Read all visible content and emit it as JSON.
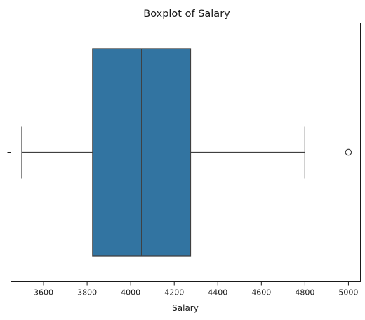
{
  "chart_data": {
    "type": "boxplot",
    "title": "Boxplot of Salary",
    "xlabel": "Salary",
    "ylabel": "",
    "xlim": [
      3450,
      5055
    ],
    "xticks": [
      3600,
      3800,
      4000,
      4200,
      4400,
      4600,
      4800,
      5000
    ],
    "grid": false,
    "series": [
      {
        "color": "#3274a1",
        "whisker_low": 3500,
        "q1": 3825,
        "median": 4050,
        "q3": 4275,
        "whisker_high": 4800,
        "outliers": [
          5000
        ]
      }
    ]
  }
}
